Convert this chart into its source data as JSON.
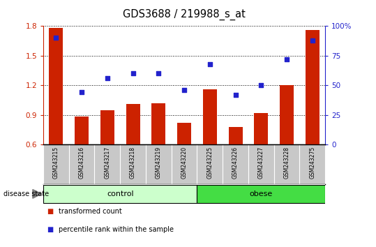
{
  "title": "GDS3688 / 219988_s_at",
  "samples": [
    "GSM243215",
    "GSM243216",
    "GSM243217",
    "GSM243218",
    "GSM243219",
    "GSM243220",
    "GSM243225",
    "GSM243226",
    "GSM243227",
    "GSM243228",
    "GSM243275"
  ],
  "bar_values": [
    1.78,
    0.88,
    0.95,
    1.01,
    1.02,
    0.82,
    1.16,
    0.78,
    0.92,
    1.2,
    1.76
  ],
  "dot_values_pct": [
    90,
    44,
    56,
    60,
    60,
    46,
    68,
    42,
    50,
    72,
    88
  ],
  "ylim_left": [
    0.6,
    1.8
  ],
  "ylim_right": [
    0,
    100
  ],
  "yticks_left": [
    0.6,
    0.9,
    1.2,
    1.5,
    1.8
  ],
  "yticks_right": [
    0,
    25,
    50,
    75,
    100
  ],
  "bar_color": "#cc2200",
  "dot_color": "#2222cc",
  "control_samples": 6,
  "obese_samples": 5,
  "control_label": "control",
  "obese_label": "obese",
  "disease_state_label": "disease state",
  "legend_bar_label": "transformed count",
  "legend_dot_label": "percentile rank within the sample",
  "control_color": "#ccffcc",
  "obese_color": "#44dd44",
  "tick_label_area_color": "#c8c8c8",
  "baseline": 0.6
}
